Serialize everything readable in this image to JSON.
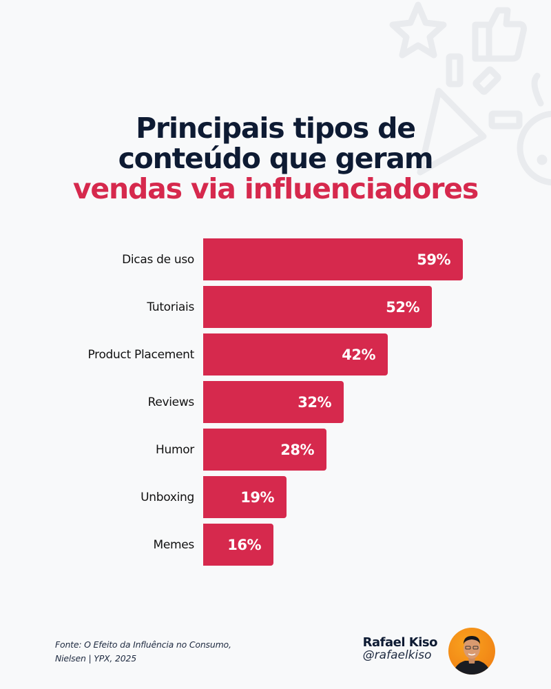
{
  "title": {
    "line1": "Principais tipos de",
    "line2": "conteúdo que geram",
    "line3": "vendas via influenciadores"
  },
  "colors": {
    "background": "#F8F9FA",
    "title": "#0E1B33",
    "accent": "#D6294D",
    "bar_label": "#FFFFFF"
  },
  "chart_data": {
    "type": "bar",
    "orientation": "horizontal",
    "title": "Principais tipos de conteúdo que geram vendas via influenciadores",
    "xlabel": "",
    "ylabel": "",
    "categories": [
      "Dicas de uso",
      "Tutoriais",
      "Product Placement",
      "Reviews",
      "Humor",
      "Unboxing",
      "Memes"
    ],
    "values": [
      59,
      52,
      42,
      32,
      28,
      19,
      16
    ],
    "value_labels": [
      "59%",
      "52%",
      "42%",
      "32%",
      "28%",
      "19%",
      "16%"
    ],
    "unit": "%",
    "grid": false,
    "legend": null,
    "bar_color": "#D6294D"
  },
  "footer": {
    "source_line1": "Fonte: O Efeito da Influência no Consumo,",
    "source_line2": "Nielsen | YPX, 2025",
    "author_name": "Rafael Kiso",
    "author_handle": "@rafaelkiso"
  },
  "decorative_icons": [
    "star-icon",
    "thumbs-up-icon",
    "megaphone-icon",
    "smiley-icon"
  ]
}
